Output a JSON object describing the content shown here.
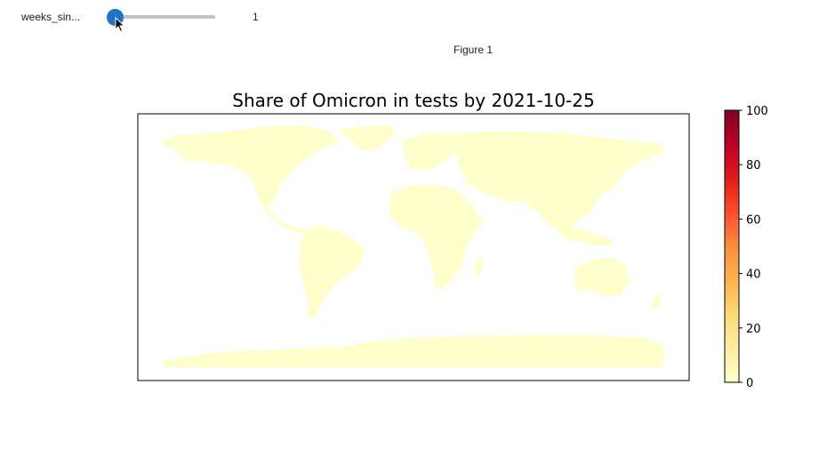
{
  "widget": {
    "label": "weeks_sin...",
    "value": "1",
    "level": 0.0
  },
  "figure": {
    "label": "Figure 1"
  },
  "chart_data": {
    "type": "heatmap",
    "title": "Share of Omicron in tests by 2021-10-25",
    "colorbar": {
      "range": [
        0,
        100
      ],
      "ticks": [
        "0",
        "20",
        "40",
        "60",
        "80",
        "100"
      ],
      "colormap": "YlOrRd",
      "colors": [
        "#ffffcc",
        "#ffeda0",
        "#fed976",
        "#feb24c",
        "#fd8d3c",
        "#fc4e2a",
        "#e31a1c",
        "#bd0026",
        "#800026"
      ]
    },
    "map_fill": "#ffffcc",
    "grid": false
  }
}
